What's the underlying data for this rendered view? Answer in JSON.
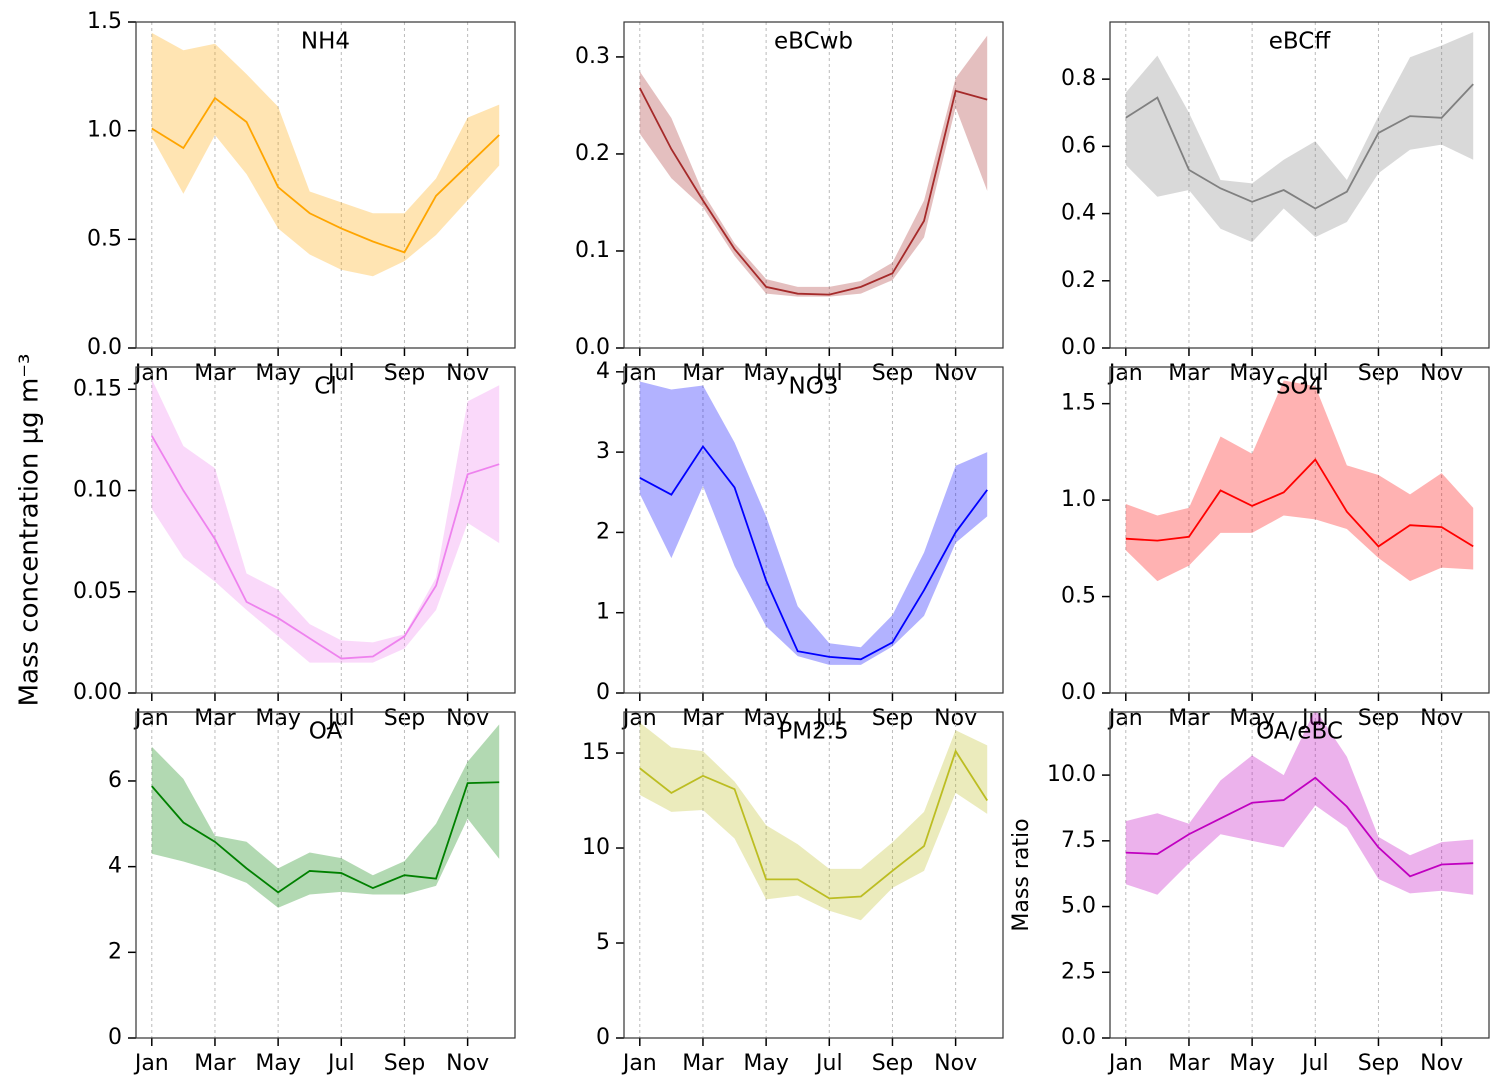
{
  "ylabel": "Mass concentration µg m⁻³",
  "chart_data": [
    {
      "type": "line",
      "title": "NH4",
      "color": "#ffa500",
      "categories": [
        "Jan",
        null,
        "Mar",
        null,
        "May",
        null,
        "Jul",
        null,
        "Sep",
        null,
        "Nov",
        null
      ],
      "ylim": [
        0,
        1.5
      ],
      "yticks": [
        {
          "value": 0,
          "label": "0.0"
        },
        {
          "value": 0.5,
          "label": "0.5"
        },
        {
          "value": 1,
          "label": "1.0"
        },
        {
          "value": 1.5,
          "label": "1.5"
        }
      ],
      "values": [
        1.01,
        0.92,
        1.15,
        1.04,
        0.74,
        0.62,
        0.55,
        0.49,
        0.44,
        0.7,
        0.84,
        0.98
      ],
      "upper": [
        1.45,
        1.37,
        1.4,
        1.26,
        1.11,
        0.72,
        0.67,
        0.62,
        0.62,
        0.78,
        1.06,
        1.12
      ],
      "lower": [
        0.97,
        0.71,
        0.98,
        0.8,
        0.55,
        0.43,
        0.36,
        0.33,
        0.4,
        0.52,
        0.68,
        0.84
      ]
    },
    {
      "type": "line",
      "title": "eBCwb",
      "color": "#a52a2a",
      "categories": [
        "Jan",
        null,
        "Mar",
        null,
        "May",
        null,
        "Jul",
        null,
        "Sep",
        null,
        "Nov",
        null
      ],
      "ylim": [
        0,
        0.336
      ],
      "yticks": [
        {
          "value": 0,
          "label": "0.0"
        },
        {
          "value": 0.1,
          "label": "0.1"
        },
        {
          "value": 0.2,
          "label": "0.2"
        },
        {
          "value": 0.3,
          "label": "0.3"
        }
      ],
      "values": [
        0.268,
        0.205,
        0.152,
        0.102,
        0.063,
        0.056,
        0.055,
        0.063,
        0.077,
        0.131,
        0.265,
        0.256
      ],
      "upper": [
        0.285,
        0.237,
        0.16,
        0.108,
        0.071,
        0.063,
        0.063,
        0.069,
        0.088,
        0.152,
        0.278,
        0.322
      ],
      "lower": [
        0.221,
        0.175,
        0.145,
        0.095,
        0.056,
        0.053,
        0.053,
        0.056,
        0.07,
        0.114,
        0.248,
        0.162
      ]
    },
    {
      "type": "line",
      "title": "eBCff",
      "color": "#808080",
      "categories": [
        "Jan",
        null,
        "Mar",
        null,
        "May",
        null,
        "Jul",
        null,
        "Sep",
        null,
        "Nov",
        null
      ],
      "ylim": [
        0,
        0.97
      ],
      "yticks": [
        {
          "value": 0,
          "label": "0.0"
        },
        {
          "value": 0.2,
          "label": "0.2"
        },
        {
          "value": 0.4,
          "label": "0.4"
        },
        {
          "value": 0.6,
          "label": "0.6"
        },
        {
          "value": 0.8,
          "label": "0.8"
        }
      ],
      "values": [
        0.685,
        0.745,
        0.53,
        0.475,
        0.435,
        0.47,
        0.415,
        0.465,
        0.64,
        0.69,
        0.685,
        0.785
      ],
      "upper": [
        0.76,
        0.87,
        0.7,
        0.5,
        0.49,
        0.56,
        0.615,
        0.5,
        0.69,
        0.865,
        0.9,
        0.94
      ],
      "lower": [
        0.545,
        0.45,
        0.47,
        0.355,
        0.315,
        0.415,
        0.33,
        0.375,
        0.52,
        0.59,
        0.605,
        0.56
      ]
    },
    {
      "type": "line",
      "title": "Cl",
      "color": "#ee82ee",
      "categories": [
        "Jan",
        null,
        "Mar",
        null,
        "May",
        null,
        "Jul",
        null,
        "Sep",
        null,
        "Nov",
        null
      ],
      "ylim": [
        0,
        0.161
      ],
      "yticks": [
        {
          "value": 0,
          "label": "0.00"
        },
        {
          "value": 0.05,
          "label": "0.05"
        },
        {
          "value": 0.1,
          "label": "0.10"
        },
        {
          "value": 0.15,
          "label": "0.15"
        }
      ],
      "values": [
        0.127,
        0.1,
        0.076,
        0.045,
        0.037,
        0.027,
        0.017,
        0.018,
        0.028,
        0.053,
        0.108,
        0.113
      ],
      "upper": [
        0.155,
        0.122,
        0.111,
        0.059,
        0.051,
        0.034,
        0.026,
        0.025,
        0.029,
        0.057,
        0.144,
        0.152
      ],
      "lower": [
        0.091,
        0.067,
        0.055,
        0.041,
        0.028,
        0.015,
        0.015,
        0.015,
        0.022,
        0.041,
        0.084,
        0.074
      ]
    },
    {
      "type": "line",
      "title": "NO3",
      "color": "#0000ff",
      "categories": [
        "Jan",
        null,
        "Mar",
        null,
        "May",
        null,
        "Jul",
        null,
        "Sep",
        null,
        "Nov",
        null
      ],
      "ylim": [
        0,
        4.06
      ],
      "yticks": [
        0,
        1,
        2,
        3,
        4
      ],
      "values": [
        2.68,
        2.47,
        3.07,
        2.56,
        1.4,
        0.52,
        0.45,
        0.42,
        0.63,
        1.28,
        2.0,
        2.53
      ],
      "upper": [
        3.88,
        3.78,
        3.83,
        3.12,
        2.2,
        1.08,
        0.62,
        0.57,
        0.97,
        1.75,
        2.83,
        3.0
      ],
      "lower": [
        2.48,
        1.68,
        2.58,
        1.58,
        0.83,
        0.46,
        0.35,
        0.35,
        0.58,
        0.96,
        1.87,
        2.2
      ]
    },
    {
      "type": "line",
      "title": "SO4",
      "color": "#ff0000",
      "categories": [
        "Jan",
        null,
        "Mar",
        null,
        "May",
        null,
        "Jul",
        null,
        "Sep",
        null,
        "Nov",
        null
      ],
      "ylim": [
        0,
        1.69
      ],
      "yticks": [
        {
          "value": 0,
          "label": "0.0"
        },
        {
          "value": 0.5,
          "label": "0.5"
        },
        {
          "value": 1,
          "label": "1.0"
        },
        {
          "value": 1.5,
          "label": "1.5"
        }
      ],
      "values": [
        0.8,
        0.79,
        0.81,
        1.05,
        0.97,
        1.04,
        1.21,
        0.94,
        0.76,
        0.87,
        0.86,
        0.76
      ],
      "upper": [
        0.98,
        0.92,
        0.96,
        1.33,
        1.24,
        1.62,
        1.59,
        1.18,
        1.13,
        1.03,
        1.14,
        0.96
      ],
      "lower": [
        0.74,
        0.58,
        0.66,
        0.83,
        0.83,
        0.92,
        0.9,
        0.85,
        0.7,
        0.58,
        0.65,
        0.64
      ]
    },
    {
      "type": "line",
      "title": "OA",
      "color": "#008000",
      "categories": [
        "Jan",
        null,
        "Mar",
        null,
        "May",
        null,
        "Jul",
        null,
        "Sep",
        null,
        "Nov",
        null
      ],
      "ylim": [
        0,
        7.61
      ],
      "yticks": [
        0,
        2,
        4,
        6
      ],
      "values": [
        5.88,
        5.03,
        4.58,
        3.96,
        3.4,
        3.9,
        3.85,
        3.5,
        3.8,
        3.72,
        5.95,
        5.97
      ],
      "upper": [
        6.8,
        6.05,
        4.72,
        4.58,
        3.96,
        4.33,
        4.2,
        3.8,
        4.13,
        5.0,
        6.45,
        7.32
      ],
      "lower": [
        4.3,
        4.12,
        3.9,
        3.62,
        3.04,
        3.35,
        3.41,
        3.35,
        3.35,
        3.55,
        5.12,
        4.18
      ]
    },
    {
      "type": "line",
      "title": "PM2.5",
      "color": "#bcbd22",
      "categories": [
        "Jan",
        null,
        "Mar",
        null,
        "May",
        null,
        "Jul",
        null,
        "Sep",
        null,
        "Nov",
        null
      ],
      "ylim": [
        0,
        17.16
      ],
      "yticks": [
        0,
        5,
        10,
        15
      ],
      "values": [
        14.2,
        12.9,
        13.8,
        13.1,
        8.35,
        8.35,
        7.35,
        7.45,
        8.8,
        10.1,
        15.1,
        12.5
      ],
      "upper": [
        16.6,
        15.3,
        15.1,
        13.5,
        11.2,
        10.2,
        8.9,
        8.9,
        10.3,
        11.9,
        16.2,
        15.4
      ],
      "lower": [
        12.8,
        11.9,
        12.0,
        10.5,
        7.3,
        7.5,
        6.7,
        6.2,
        7.9,
        8.8,
        12.9,
        11.8
      ]
    },
    {
      "type": "line",
      "title": "OA/eBC",
      "color": "#c000c0",
      "ylabel": "Mass ratio",
      "categories": [
        "Jan",
        null,
        "Mar",
        null,
        "May",
        null,
        "Jul",
        null,
        "Sep",
        null,
        "Nov",
        null
      ],
      "ylim": [
        0,
        12.4
      ],
      "yticks": [
        {
          "value": 0,
          "label": "0.0"
        },
        {
          "value": 2.5,
          "label": "2.5"
        },
        {
          "value": 5,
          "label": "5.0"
        },
        {
          "value": 7.5,
          "label": "7.5"
        },
        {
          "value": 10,
          "label": "10.0"
        }
      ],
      "values": [
        7.05,
        7.0,
        7.75,
        8.35,
        8.95,
        9.05,
        9.9,
        8.8,
        7.25,
        6.15,
        6.6,
        6.65
      ],
      "upper": [
        8.25,
        8.55,
        8.15,
        9.8,
        10.75,
        10.0,
        12.5,
        10.7,
        7.65,
        6.95,
        7.45,
        7.55
      ],
      "lower": [
        5.85,
        5.45,
        6.65,
        7.75,
        7.5,
        7.25,
        8.85,
        8.0,
        6.05,
        5.5,
        5.6,
        5.45
      ]
    }
  ]
}
